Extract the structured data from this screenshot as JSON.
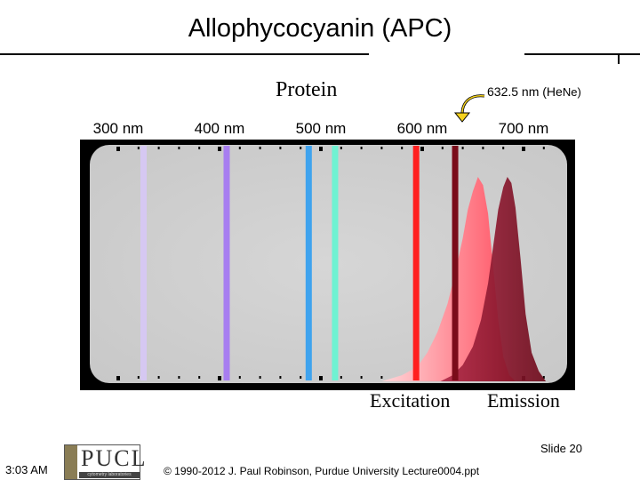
{
  "header": {
    "title": "Allophycocyanin (APC)"
  },
  "chart_data": {
    "type": "area",
    "title": "Protein",
    "x_ticks": [
      {
        "value": 300,
        "label": "300 nm"
      },
      {
        "value": 400,
        "label": "400 nm"
      },
      {
        "value": 500,
        "label": "500 nm"
      },
      {
        "value": 600,
        "label": "600 nm"
      },
      {
        "value": 700,
        "label": "700 nm"
      }
    ],
    "xlim": [
      280,
      730
    ],
    "ylim": [
      0,
      1
    ],
    "laser_lines": [
      {
        "wavelength": 325,
        "color": "#d6c8f2"
      },
      {
        "wavelength": 407,
        "color": "#a77ef0"
      },
      {
        "wavelength": 488,
        "color": "#3fa3ee"
      },
      {
        "wavelength": 514,
        "color": "#6ff2d2"
      },
      {
        "wavelength": 594,
        "color": "#ff1f1f"
      },
      {
        "wavelength": 632.5,
        "color": "#7a0c1a"
      }
    ],
    "annotation": {
      "wavelength": 632.5,
      "label": "632.5 nm (He",
      "label_unit": "Ne)"
    },
    "series": [
      {
        "name": "Excitation",
        "color": "#ff5a66",
        "x": [
          560,
          580,
          595,
          605,
          615,
          625,
          632,
          640,
          645,
          650,
          655,
          660,
          665,
          670,
          675,
          680,
          686,
          692
        ],
        "y": [
          0,
          0.03,
          0.07,
          0.14,
          0.24,
          0.38,
          0.52,
          0.7,
          0.84,
          0.93,
          1.0,
          0.96,
          0.82,
          0.56,
          0.3,
          0.12,
          0.03,
          0
        ]
      },
      {
        "name": "Emission",
        "color": "#8e1730",
        "x": [
          618,
          630,
          640,
          650,
          658,
          665,
          670,
          675,
          680,
          684,
          688,
          692,
          697,
          702,
          708,
          715,
          722
        ],
        "y": [
          0,
          0.03,
          0.08,
          0.17,
          0.3,
          0.48,
          0.66,
          0.84,
          0.95,
          1.0,
          0.97,
          0.85,
          0.6,
          0.33,
          0.14,
          0.05,
          0
        ]
      }
    ]
  },
  "footer": {
    "slide": "Slide 20",
    "time": "3:03 AM",
    "copyright": "© 1990-2012 J. Paul Robinson, Purdue University Lecture0004.ppt",
    "logo_text": "PUCL",
    "logo_sub": "cytometry laboratories"
  }
}
